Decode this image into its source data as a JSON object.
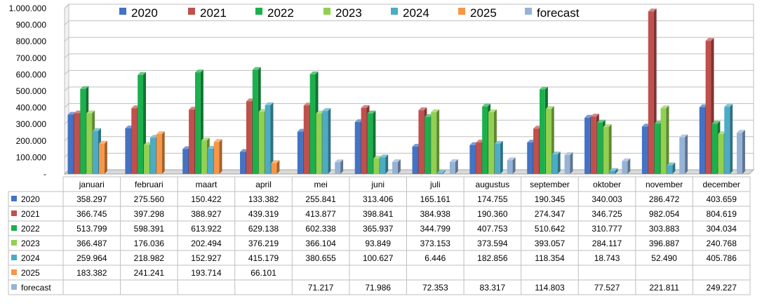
{
  "chart_data": {
    "type": "bar",
    "categories": [
      "januari",
      "februari",
      "maart",
      "april",
      "mei",
      "juni",
      "juli",
      "augustus",
      "september",
      "oktober",
      "november",
      "december"
    ],
    "series": [
      {
        "name": "2020",
        "color": "#4472C4",
        "values": [
          358297,
          275560,
          150422,
          133382,
          255841,
          313406,
          165161,
          174755,
          190345,
          340003,
          286472,
          403659
        ],
        "labels": [
          "358.297",
          "275.560",
          "150.422",
          "133.382",
          "255.841",
          "313.406",
          "165.161",
          "174.755",
          "190.345",
          "340.003",
          "286.472",
          "403.659"
        ]
      },
      {
        "name": "2021",
        "color": "#C0504D",
        "values": [
          366745,
          397298,
          388927,
          439319,
          413877,
          398841,
          384938,
          190360,
          274347,
          346725,
          982054,
          804619
        ],
        "labels": [
          "366.745",
          "397.298",
          "388.927",
          "439.319",
          "413.877",
          "398.841",
          "384.938",
          "190.360",
          "274.347",
          "346.725",
          "982.054",
          "804.619"
        ]
      },
      {
        "name": "2022",
        "color": "#1CB04C",
        "values": [
          513799,
          598391,
          613922,
          629138,
          602338,
          365937,
          344799,
          407753,
          510642,
          310777,
          303883,
          304034
        ],
        "labels": [
          "513.799",
          "598.391",
          "613.922",
          "629.138",
          "602.338",
          "365.937",
          "344.799",
          "407.753",
          "510.642",
          "310.777",
          "303.883",
          "304.034"
        ]
      },
      {
        "name": "2023",
        "color": "#92D050",
        "values": [
          366487,
          176036,
          202494,
          376219,
          366104,
          93849,
          373153,
          373594,
          393057,
          284117,
          396887,
          240768
        ],
        "labels": [
          "366.487",
          "176.036",
          "202.494",
          "376.219",
          "366.104",
          "93.849",
          "373.153",
          "373.594",
          "393.057",
          "284.117",
          "396.887",
          "240.768"
        ]
      },
      {
        "name": "2024",
        "color": "#4BACC6",
        "values": [
          259964,
          218982,
          152927,
          415179,
          380655,
          100627,
          6446,
          182856,
          118354,
          18743,
          52490,
          405786
        ],
        "labels": [
          "259.964",
          "218.982",
          "152.927",
          "415.179",
          "380.655",
          "100.627",
          "6.446",
          "182.856",
          "118.354",
          "18.743",
          "52.490",
          "405.786"
        ]
      },
      {
        "name": "2025",
        "color": "#F79646",
        "values": [
          183382,
          241241,
          193714,
          66101,
          null,
          null,
          null,
          null,
          null,
          null,
          null,
          null
        ],
        "labels": [
          "183.382",
          "241.241",
          "193.714",
          "66.101",
          "",
          "",
          "",
          "",
          "",
          "",
          "",
          ""
        ]
      },
      {
        "name": "forecast",
        "color": "#95B3D7",
        "values": [
          null,
          null,
          null,
          null,
          71217,
          71986,
          72353,
          83317,
          114803,
          77527,
          221811,
          249227
        ],
        "labels": [
          "",
          "",
          "",
          "",
          "71.217",
          "71.986",
          "72.353",
          "83.317",
          "114.803",
          "77.527",
          "221.811",
          "249.227"
        ]
      }
    ],
    "ylim": [
      0,
      1000000
    ],
    "yticks": [
      "-",
      "100.000",
      "200.000",
      "300.000",
      "400.000",
      "500.000",
      "600.000",
      "700.000",
      "800.000",
      "900.000",
      "1.000.000"
    ],
    "legend_position": "top",
    "grid": true,
    "data_table": true
  }
}
